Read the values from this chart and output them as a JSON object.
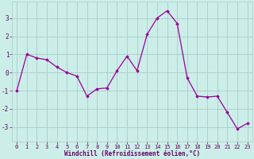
{
  "x": [
    0,
    1,
    2,
    3,
    4,
    5,
    6,
    7,
    8,
    9,
    10,
    11,
    12,
    13,
    14,
    15,
    16,
    17,
    18,
    19,
    20,
    21,
    22,
    23
  ],
  "y": [
    -1.0,
    1.0,
    0.8,
    0.7,
    0.3,
    0.0,
    -0.2,
    -1.3,
    -0.9,
    -0.85,
    0.1,
    0.9,
    0.1,
    2.1,
    3.0,
    3.4,
    2.7,
    -0.3,
    -1.3,
    -1.35,
    -1.3,
    -2.2,
    -3.1,
    -2.8
  ],
  "line_color": "#990099",
  "marker": "D",
  "marker_size": 1.8,
  "line_width": 0.9,
  "bg_color": "#cceee8",
  "grid_color": "#aacccc",
  "xlabel": "Windchill (Refroidissement éolien,°C)",
  "xlabel_color": "#660066",
  "xlabel_fontsize": 5.5,
  "ylim": [
    -3.8,
    3.9
  ],
  "xlim": [
    -0.5,
    23.5
  ],
  "yticks": [
    -3,
    -2,
    -1,
    0,
    1,
    2,
    3
  ],
  "xticks": [
    0,
    1,
    2,
    3,
    4,
    5,
    6,
    7,
    8,
    9,
    10,
    11,
    12,
    13,
    14,
    15,
    16,
    17,
    18,
    19,
    20,
    21,
    22,
    23
  ],
  "tick_fontsize": 5.0,
  "ytick_fontsize": 5.5,
  "tick_color": "#660066"
}
